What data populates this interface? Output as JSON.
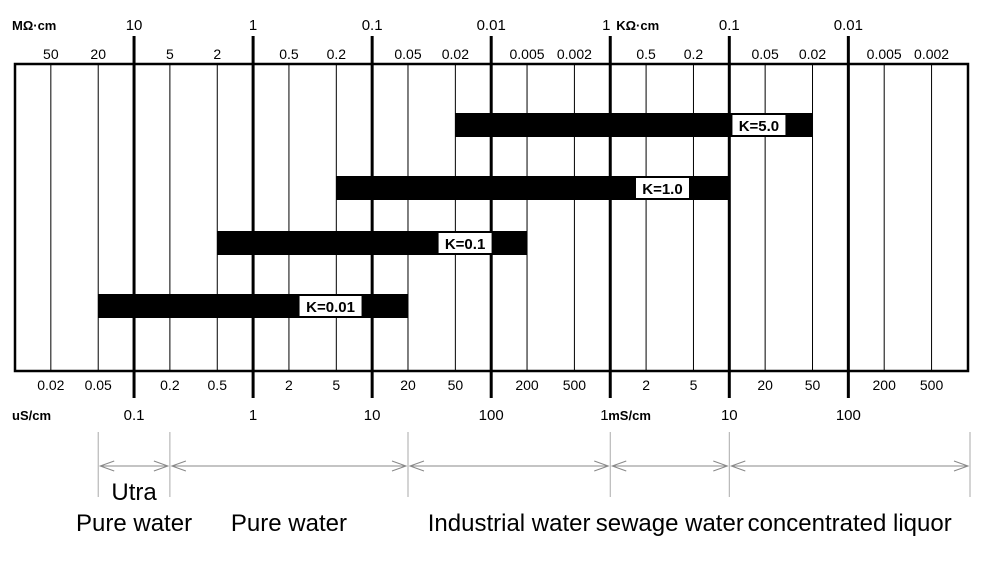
{
  "chart_data": {
    "type": "range-chart",
    "axes": {
      "resistivity": {
        "unit_left": "MΩ·cm",
        "unit_mid": "KΩ·cm",
        "major_labels": [
          "10",
          "1",
          "0.1",
          "0.01",
          "1",
          "0.1",
          "0.01"
        ],
        "minor_labels": [
          "50",
          "20",
          "5",
          "2",
          "0.5",
          "0.2",
          "0.05",
          "0.02",
          "0.005",
          "0.002",
          "0.5",
          "0.2",
          "0.05",
          "0.02",
          "0.005",
          "0.002"
        ]
      },
      "conductivity": {
        "unit_left": "uS/cm",
        "unit_mid": "mS/cm",
        "major_labels": [
          "0.1",
          "1",
          "10",
          "100",
          "1",
          "10",
          "100"
        ],
        "minor_labels": [
          "0.02",
          "0.05",
          "0.2",
          "0.5",
          "2",
          "5",
          "20",
          "50",
          "200",
          "500",
          "2",
          "5",
          "20",
          "50",
          "200",
          "500"
        ]
      },
      "conductivity_range_uS_cm": [
        0.01,
        1000000
      ]
    },
    "series": [
      {
        "name": "K=5.0",
        "range_uS_cm": [
          50,
          50000
        ]
      },
      {
        "name": "K=1.0",
        "range_uS_cm": [
          5,
          10000
        ]
      },
      {
        "name": "K=0.1",
        "range_uS_cm": [
          0.5,
          200
        ]
      },
      {
        "name": "K=0.01",
        "range_uS_cm": [
          0.05,
          20
        ]
      }
    ],
    "regions": [
      {
        "lines": [
          "Utra",
          "Pure water"
        ],
        "range_uS_cm": [
          0.05,
          0.2
        ]
      },
      {
        "lines": [
          "Pure water"
        ],
        "range_uS_cm": [
          0.2,
          20
        ]
      },
      {
        "lines": [
          "Industrial water"
        ],
        "range_uS_cm": [
          20,
          1000
        ]
      },
      {
        "lines": [
          "sewage water"
        ],
        "range_uS_cm": [
          1000,
          10000
        ]
      },
      {
        "lines": [
          "concentrated liquor"
        ],
        "range_uS_cm": [
          10000,
          1000000
        ]
      }
    ]
  }
}
